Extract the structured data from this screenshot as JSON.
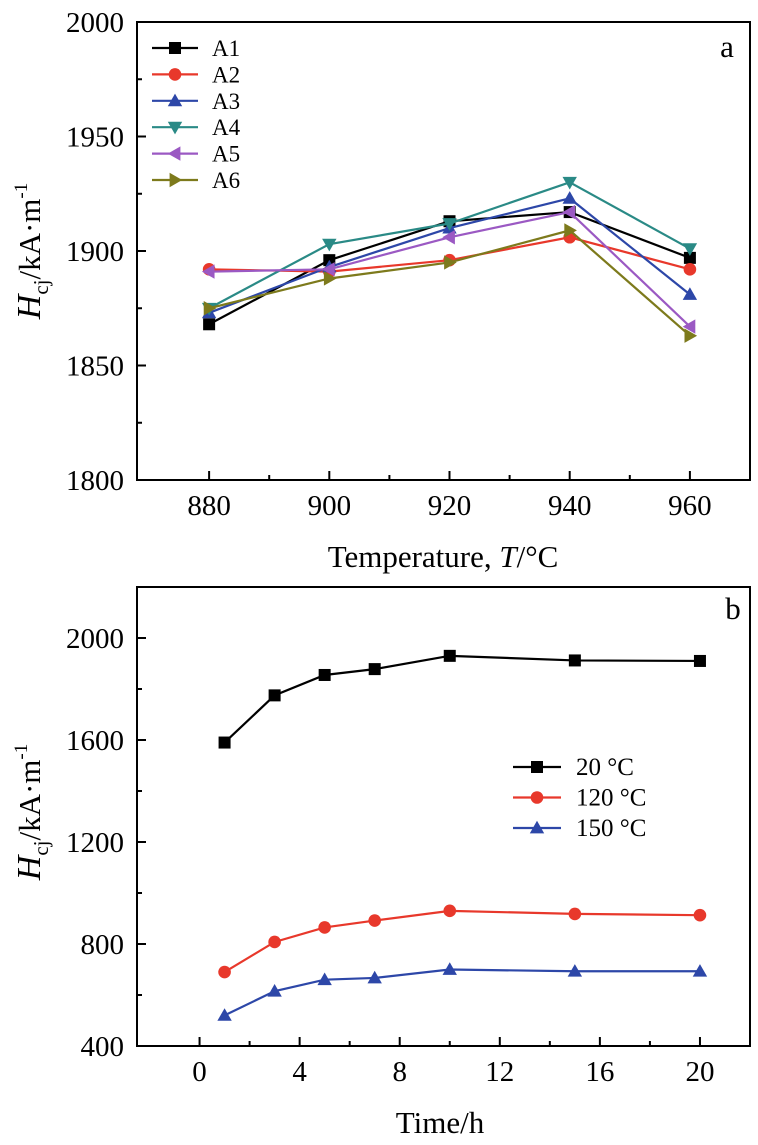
{
  "chart_data": [
    {
      "type": "line",
      "panel_label": "a",
      "xlabel_text": "Temperature, ",
      "xlabel_var": "T",
      "xlabel_unit": "/°C",
      "ylabel_var": "H",
      "ylabel_sub": "cj",
      "ylabel_unit": "/kA·m",
      "ylabel_sup": "-1",
      "x": [
        880,
        900,
        920,
        940,
        960
      ],
      "x_ticks": [
        "880",
        "900",
        "920",
        "940",
        "960"
      ],
      "y_ticks": [
        "1800",
        "1850",
        "1900",
        "1950",
        "2000"
      ],
      "xlim": [
        868,
        970
      ],
      "ylim": [
        1800,
        2000
      ],
      "legend_position": "top-left",
      "series": [
        {
          "name": "A1",
          "color": "#000000",
          "marker": "square",
          "values": [
            1868,
            1896,
            1913,
            1917,
            1897
          ]
        },
        {
          "name": "A2",
          "color": "#e8382b",
          "marker": "circle",
          "values": [
            1892,
            1891,
            1896,
            1906,
            1892
          ]
        },
        {
          "name": "A3",
          "color": "#2d47a8",
          "marker": "triangle-up",
          "values": [
            1873,
            1893,
            1910,
            1923,
            1881
          ]
        },
        {
          "name": "A4",
          "color": "#2a8a86",
          "marker": "triangle-down",
          "values": [
            1875,
            1903,
            1912,
            1930,
            1901
          ]
        },
        {
          "name": "A5",
          "color": "#9b59c3",
          "marker": "triangle-left",
          "values": [
            1891,
            1892,
            1906,
            1917,
            1867
          ]
        },
        {
          "name": "A6",
          "color": "#7d7a1c",
          "marker": "triangle-right",
          "values": [
            1875,
            1888,
            1895,
            1909,
            1863
          ]
        }
      ]
    },
    {
      "type": "line",
      "panel_label": "b",
      "xlabel": "Time/h",
      "ylabel_var": "H",
      "ylabel_sub": "cj",
      "ylabel_unit": "/kA·m",
      "ylabel_sup": "-1",
      "x": [
        1,
        3,
        5,
        7,
        10,
        15,
        20
      ],
      "x_ticks": [
        "0",
        "4",
        "8",
        "12",
        "16",
        "20"
      ],
      "y_ticks": [
        "400",
        "800",
        "1200",
        "1600",
        "2000"
      ],
      "xlim": [
        -2.5,
        22
      ],
      "ylim": [
        400,
        2200
      ],
      "legend_position": "right",
      "series": [
        {
          "name": "20 °C",
          "color": "#000000",
          "marker": "square",
          "values": [
            1590,
            1775,
            1855,
            1878,
            1930,
            1912,
            1910
          ]
        },
        {
          "name": "120 °C",
          "color": "#e8382b",
          "marker": "circle",
          "values": [
            690,
            808,
            865,
            892,
            930,
            918,
            913
          ]
        },
        {
          "name": "150 °C",
          "color": "#2d47a8",
          "marker": "triangle-up",
          "values": [
            520,
            615,
            660,
            667,
            700,
            693,
            693
          ]
        }
      ]
    }
  ]
}
